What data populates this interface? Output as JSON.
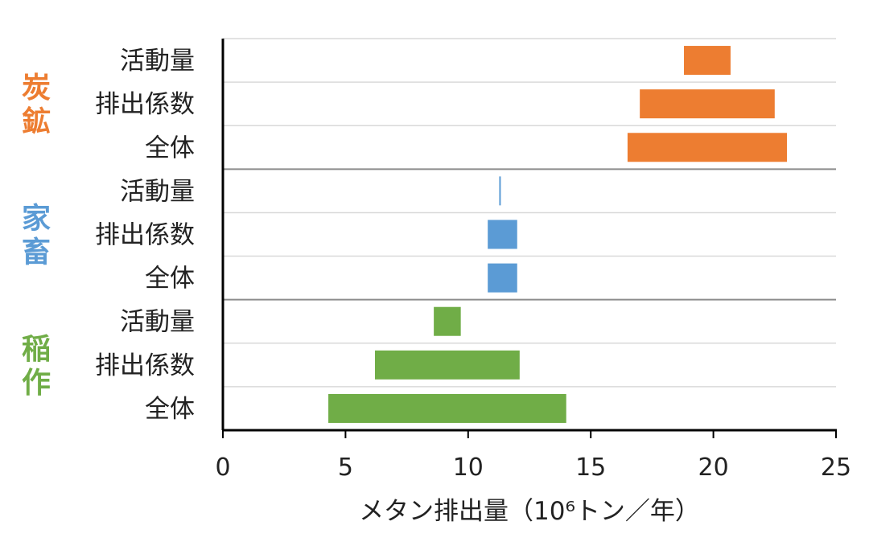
{
  "chart_data": {
    "type": "bar",
    "orientation": "horizontal-range",
    "xlabel": "メタン排出量（10⁶トン／年）",
    "xlim": [
      0,
      25
    ],
    "xticks": [
      0,
      5,
      10,
      15,
      20,
      25
    ],
    "grid": "horizontal",
    "groups": [
      {
        "label": "炭鉱",
        "color": "#ED7D31",
        "bars": [
          {
            "category": "活動量",
            "start": 18.8,
            "end": 20.7
          },
          {
            "category": "排出係数",
            "start": 17.0,
            "end": 22.5
          },
          {
            "category": "全体",
            "start": 16.5,
            "end": 23.0
          }
        ]
      },
      {
        "label": "家畜",
        "color": "#5B9BD5",
        "bars": [
          {
            "category": "活動量",
            "start": 11.3,
            "end": 11.35
          },
          {
            "category": "排出係数",
            "start": 10.8,
            "end": 12.0
          },
          {
            "category": "全体",
            "start": 10.8,
            "end": 12.0
          }
        ]
      },
      {
        "label": "稲作",
        "color": "#70AD47",
        "bars": [
          {
            "category": "活動量",
            "start": 8.6,
            "end": 9.7
          },
          {
            "category": "排出係数",
            "start": 6.2,
            "end": 12.1
          },
          {
            "category": "全体",
            "start": 4.3,
            "end": 14.0
          }
        ]
      }
    ]
  }
}
